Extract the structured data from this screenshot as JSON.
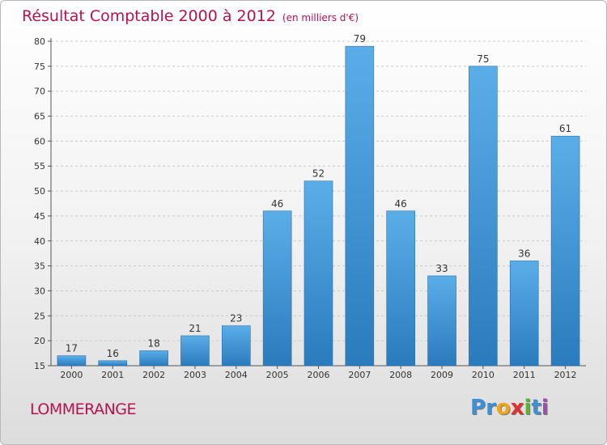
{
  "header": {
    "title": "Résultat Comptable 2000 à 2012",
    "subtitle": "(en milliers d'€)"
  },
  "footer": {
    "commune": "LOMMERANGE",
    "logo": [
      "P",
      "r",
      "o",
      "x",
      "i",
      "t",
      "i"
    ]
  },
  "colors": {
    "title": "#b5124f",
    "bar_light": "#5aaee8",
    "bar_dark": "#2a7bbd",
    "logo": [
      "#3f8fd6",
      "#3f8fd6",
      "#f0a419",
      "#e0322c",
      "#5bb52f",
      "#3f8fd6",
      "#9c4fb0"
    ]
  },
  "chart_data": {
    "type": "bar",
    "title": "Résultat Comptable 2000 à 2012",
    "subtitle": "(en milliers d'€)",
    "categories": [
      "2000",
      "2001",
      "2002",
      "2003",
      "2004",
      "2005",
      "2006",
      "2007",
      "2008",
      "2009",
      "2010",
      "2011",
      "2012"
    ],
    "values": [
      17,
      16,
      18,
      21,
      23,
      46,
      52,
      79,
      46,
      33,
      75,
      36,
      61
    ],
    "ylim": [
      15,
      80
    ],
    "yticks": [
      15,
      20,
      25,
      30,
      35,
      40,
      45,
      50,
      55,
      60,
      65,
      70,
      75,
      80
    ],
    "xlabel": "",
    "ylabel": "",
    "grid": "horizontal dashed",
    "legend": "none"
  }
}
